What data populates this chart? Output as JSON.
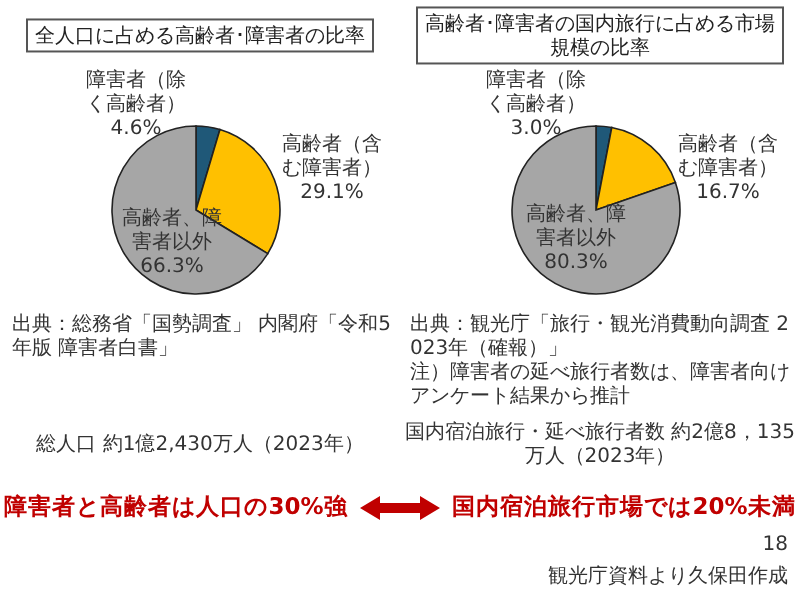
{
  "chart_data": [
    {
      "type": "pie",
      "title": "全人口に占める高齢者･障害者の比率",
      "categories": [
        "障害者（除く高齢者）",
        "高齢者（含む障害者）",
        "高齢者、障害者以外"
      ],
      "values": [
        4.6,
        29.1,
        66.3
      ],
      "value_labels": [
        "4.6%",
        "29.1%",
        "66.3%"
      ],
      "colors": [
        "#1f5878",
        "#ffc000",
        "#a6a6a6"
      ],
      "annotations": [
        "出典：総務省「国勢調査」 内閣府「令和5年版 障害者白書」",
        "総人口 約1億2,430万人（2023年）",
        "障害者と高齢者は人口の30%強"
      ]
    },
    {
      "type": "pie",
      "title": "高齢者･障害者の国内旅行に占める市場規模の比率",
      "categories": [
        "障害者（除く高齢者）",
        "高齢者（含む障害者）",
        "高齢者、障害者以外"
      ],
      "values": [
        3.0,
        16.7,
        80.3
      ],
      "value_labels": [
        "3.0%",
        "16.7%",
        "80.3%"
      ],
      "colors": [
        "#1f5878",
        "#ffc000",
        "#a6a6a6"
      ],
      "annotations": [
        "出典：観光庁「旅行・観光消費動向調査 2023年（確報）」",
        "注）障害者の延べ旅行者数は、障害者向けアンケート結果から推計",
        "国内宿泊旅行・延べ旅行者数 約2億8，135万人（2023年）",
        "国内宿泊旅行市場では20%未満",
        "18",
        "観光庁資料より久保田作成"
      ]
    }
  ]
}
